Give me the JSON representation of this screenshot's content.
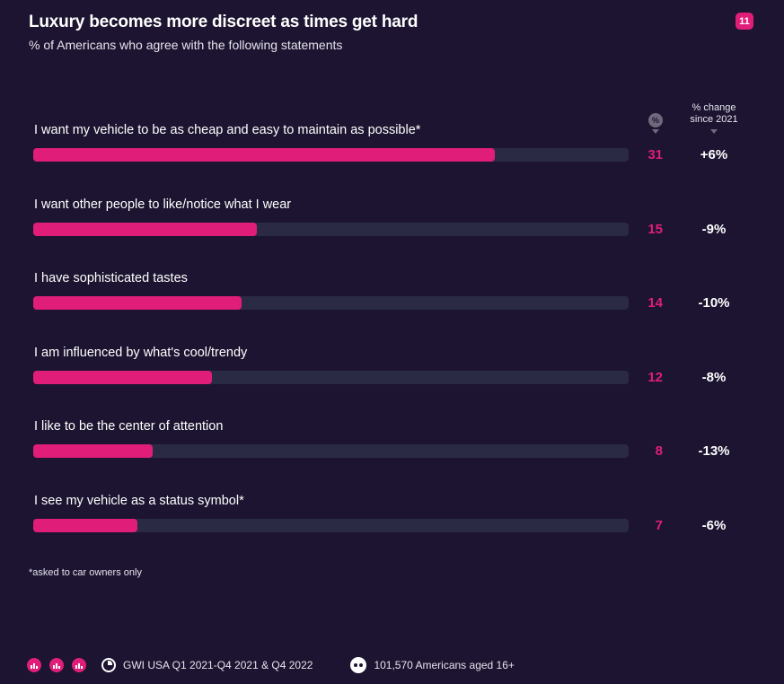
{
  "header": {
    "title": "Luxury becomes more discreet as times get hard",
    "subtitle": "% of Americans who agree with the following statements",
    "page_number": "11"
  },
  "columns": {
    "pct_label": "%",
    "change_label": "% change\nsince 2021"
  },
  "chart_data": {
    "type": "bar",
    "orientation": "horizontal",
    "title": "Luxury becomes more discreet as times get hard",
    "subtitle": "% of Americans who agree with the following statements",
    "xlim": [
      0,
      40
    ],
    "categories": [
      "I want my vehicle to be as cheap and easy to maintain as possible*",
      "I want other people to like/notice what I wear",
      "I have sophisticated tastes",
      "I am influenced by what's cool/trendy",
      "I like to be the center of attention",
      "I see my vehicle as a status symbol*"
    ],
    "values": [
      31,
      15,
      14,
      12,
      8,
      7
    ],
    "change_since_2021": [
      "+6%",
      "-9%",
      "-10%",
      "-8%",
      "-13%",
      "-6%"
    ]
  },
  "footnote": "*asked to car owners only",
  "footer": {
    "source": "GWI USA Q1 2021-Q4 2021 & Q4 2022",
    "sample": "101,570 Americans aged 16+"
  },
  "colors": {
    "background": "#1c1430",
    "accent": "#e01e7a",
    "track": "#2b2a45"
  }
}
